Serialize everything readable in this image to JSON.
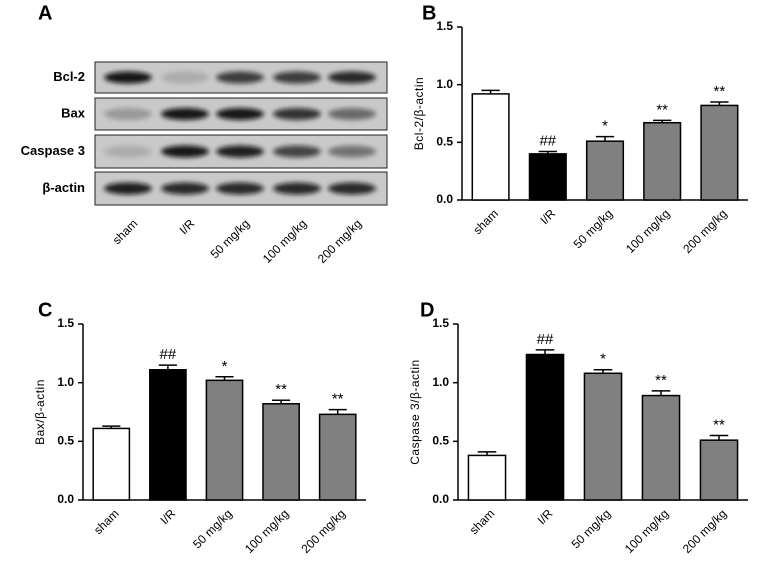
{
  "blot": {
    "panel_label": "A",
    "rows": [
      "Bcl-2",
      "Bax",
      "Caspase 3",
      "β-actin"
    ],
    "lanes": [
      "sham",
      "I/R",
      "50 mg/kg",
      "100 mg/kg",
      "200 mg/kg"
    ]
  },
  "chart_data": [
    {
      "type": "bar",
      "panel_label": "B",
      "y_label": "Bcl-2/β-actin",
      "categories": [
        "sham",
        "I/R",
        "50 mg/kg",
        "100 mg/kg",
        "200 mg/kg"
      ],
      "values": [
        0.92,
        0.4,
        0.51,
        0.67,
        0.82
      ],
      "errors": [
        0.03,
        0.02,
        0.04,
        0.02,
        0.03
      ],
      "annotations": [
        null,
        "##",
        "*",
        "**",
        "**"
      ],
      "colors": [
        "#ffffff",
        "#000000",
        "#808080",
        "#808080",
        "#808080"
      ],
      "ylim": [
        0,
        1.5
      ],
      "yticks": [
        {
          "value": 0,
          "label": "0.0"
        },
        {
          "value": 0.5,
          "label": "0.5"
        },
        {
          "value": 1,
          "label": "1.0"
        },
        {
          "value": 1.5,
          "label": "1.5"
        }
      ]
    },
    {
      "type": "bar",
      "panel_label": "C",
      "y_label": "Bax/β-actin",
      "categories": [
        "sham",
        "I/R",
        "50 mg/kg",
        "100 mg/kg",
        "200 mg/kg"
      ],
      "values": [
        0.61,
        1.11,
        1.02,
        0.82,
        0.73
      ],
      "errors": [
        0.02,
        0.04,
        0.03,
        0.03,
        0.04
      ],
      "annotations": [
        null,
        "##",
        "*",
        "**",
        "**"
      ],
      "colors": [
        "#ffffff",
        "#000000",
        "#808080",
        "#808080",
        "#808080"
      ],
      "ylim": [
        0,
        1.5
      ],
      "yticks": [
        {
          "value": 0,
          "label": "0.0"
        },
        {
          "value": 0.5,
          "label": "0.5"
        },
        {
          "value": 1,
          "label": "1.0"
        },
        {
          "value": 1.5,
          "label": "1.5"
        }
      ]
    },
    {
      "type": "bar",
      "panel_label": "D",
      "y_label": "Caspase 3/β-actin",
      "categories": [
        "sham",
        "I/R",
        "50 mg/kg",
        "100 mg/kg",
        "200 mg/kg"
      ],
      "values": [
        0.38,
        1.24,
        1.08,
        0.89,
        0.51
      ],
      "errors": [
        0.03,
        0.04,
        0.03,
        0.04,
        0.04
      ],
      "annotations": [
        null,
        "##",
        "*",
        "**",
        "**"
      ],
      "colors": [
        "#ffffff",
        "#000000",
        "#808080",
        "#808080",
        "#808080"
      ],
      "ylim": [
        0,
        1.5
      ],
      "yticks": [
        {
          "value": 0,
          "label": "0.0"
        },
        {
          "value": 0.5,
          "label": "0.5"
        },
        {
          "value": 1,
          "label": "1.0"
        },
        {
          "value": 1.5,
          "label": "1.5"
        }
      ]
    }
  ]
}
